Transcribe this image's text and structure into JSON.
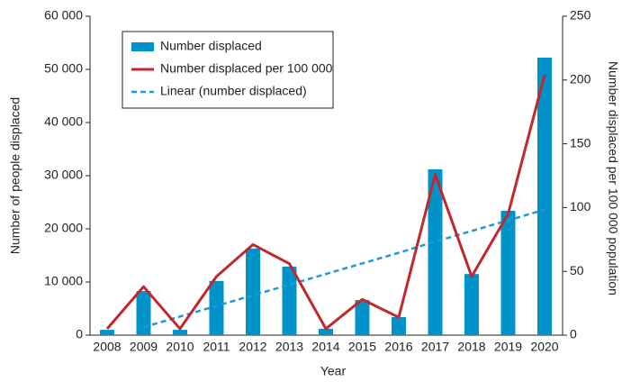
{
  "chart_data": {
    "type": "bar",
    "x_label": "Year",
    "y_label": "Number of people displaced",
    "y2_label": "Number displaced per 100 000 population",
    "categories": [
      "2008",
      "2009",
      "2010",
      "2011",
      "2012",
      "2013",
      "2014",
      "2015",
      "2016",
      "2017",
      "2018",
      "2019",
      "2020"
    ],
    "series": [
      {
        "name": "Number displaced",
        "type": "bar",
        "color": "#0093c9",
        "values": [
          1000,
          8300,
          1000,
          10200,
          16300,
          12900,
          1200,
          6600,
          3400,
          31200,
          11500,
          23400,
          52200
        ]
      },
      {
        "name": "Number displaced per 100 000",
        "type": "line",
        "axis": "y2",
        "color": "#c0282d",
        "values": [
          5,
          38,
          5,
          46,
          71,
          56,
          5,
          28,
          14,
          126,
          46,
          95,
          204
        ]
      },
      {
        "name": "Linear (number displaced)",
        "type": "dashed",
        "color": "#1a9ad6",
        "values": [
          null,
          1500,
          3500,
          5500,
          7500,
          9500,
          11500,
          13500,
          15500,
          17600,
          19600,
          21600,
          23600
        ]
      }
    ],
    "ylim": [
      0,
      60000
    ],
    "yticks": [
      0,
      {
        "value": 10000,
        "label": "10 000"
      },
      {
        "value": 20000,
        "label": "20 000"
      },
      {
        "value": 30000,
        "label": "30 000"
      },
      {
        "value": 40000,
        "label": "40 000"
      },
      {
        "value": 50000,
        "label": "50 000"
      },
      {
        "value": 60000,
        "label": "60 000"
      }
    ],
    "y2lim": [
      0,
      250
    ],
    "y2ticks": [
      0,
      50,
      100,
      150,
      200,
      250
    ],
    "legend": "upper left",
    "grid": false
  }
}
